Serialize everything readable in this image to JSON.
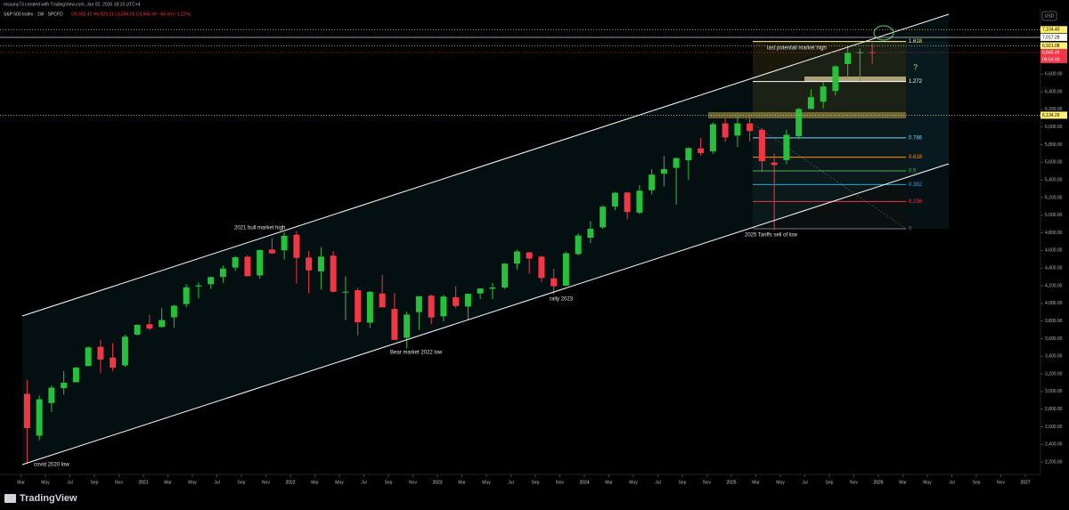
{
  "chart_data": {
    "type": "candlestick",
    "header": "mssany73 created with TradingView.com, Jan 02, 2026 18:15 UTC+4",
    "symbol": "S&P 500 Index · 1W · SPCFD",
    "quote": "O6,902.42 H6,929.21 L6,844.55 C6,845.49 −84.49 (−1.22%)",
    "currency": "USD",
    "brand": "TradingView",
    "up_color": "#26c13b",
    "down_color": "#f23645",
    "x": [
      "2020-03",
      "2020-04",
      "2020-05",
      "2020-06",
      "2020-07",
      "2020-08",
      "2020-09",
      "2020-10",
      "2020-11",
      "2020-12",
      "2021-01",
      "2021-02",
      "2021-03",
      "2021-04",
      "2021-05",
      "2021-06",
      "2021-07",
      "2021-08",
      "2021-09",
      "2021-10",
      "2021-11",
      "2021-12",
      "2022-01",
      "2022-02",
      "2022-03",
      "2022-04",
      "2022-05",
      "2022-06",
      "2022-07",
      "2022-08",
      "2022-09",
      "2022-10",
      "2022-11",
      "2022-12",
      "2023-01",
      "2023-02",
      "2023-03",
      "2023-04",
      "2023-05",
      "2023-06",
      "2023-07",
      "2023-08",
      "2023-09",
      "2023-10",
      "2023-11",
      "2023-12",
      "2024-01",
      "2024-02",
      "2024-03",
      "2024-04",
      "2024-05",
      "2024-06",
      "2024-07",
      "2024-08",
      "2024-09",
      "2024-10",
      "2024-11",
      "2024-12",
      "2025-01",
      "2025-02",
      "2025-03",
      "2025-04",
      "2025-05",
      "2025-06",
      "2025-07",
      "2025-08",
      "2025-09",
      "2025-10",
      "2025-11",
      "2025-12"
    ],
    "ohlc": [
      [
        2974,
        3136,
        2192,
        2585
      ],
      [
        2499,
        2954,
        2447,
        2912
      ],
      [
        2869,
        3068,
        2766,
        3044
      ],
      [
        3038,
        3233,
        2965,
        3100
      ],
      [
        3105,
        3279,
        3115,
        3271
      ],
      [
        3289,
        3514,
        3285,
        3500
      ],
      [
        3507,
        3588,
        3209,
        3363
      ],
      [
        3385,
        3550,
        3233,
        3270
      ],
      [
        3296,
        3646,
        3280,
        3622
      ],
      [
        3645,
        3760,
        3633,
        3756
      ],
      [
        3764,
        3870,
        3695,
        3714
      ],
      [
        3732,
        3950,
        3725,
        3811
      ],
      [
        3842,
        3983,
        3723,
        3973
      ],
      [
        3992,
        4218,
        3955,
        4181
      ],
      [
        4192,
        4238,
        4056,
        4204
      ],
      [
        4217,
        4302,
        4164,
        4298
      ],
      [
        4300,
        4429,
        4233,
        4395
      ],
      [
        4406,
        4537,
        4367,
        4523
      ],
      [
        4529,
        4546,
        4306,
        4308
      ],
      [
        4317,
        4608,
        4279,
        4605
      ],
      [
        4610,
        4744,
        4560,
        4567
      ],
      [
        4602,
        4809,
        4495,
        4766
      ],
      [
        4778,
        4819,
        4223,
        4516
      ],
      [
        4519,
        4595,
        4115,
        4374
      ],
      [
        4363,
        4637,
        4157,
        4530
      ],
      [
        4541,
        4593,
        4124,
        4132
      ],
      [
        4131,
        4307,
        3811,
        4132
      ],
      [
        4150,
        4177,
        3637,
        3785
      ],
      [
        3781,
        4140,
        3721,
        4130
      ],
      [
        4112,
        4325,
        3955,
        3955
      ],
      [
        3937,
        4119,
        3585,
        3586
      ],
      [
        3610,
        3905,
        3492,
        3872
      ],
      [
        3901,
        4080,
        3699,
        4080
      ],
      [
        4087,
        4101,
        3764,
        3840
      ],
      [
        3853,
        4095,
        3795,
        4077
      ],
      [
        4070,
        4195,
        3944,
        3970
      ],
      [
        3964,
        4111,
        3809,
        4109
      ],
      [
        4112,
        4170,
        4049,
        4169
      ],
      [
        4166,
        4231,
        4048,
        4180
      ],
      [
        4181,
        4458,
        4166,
        4450
      ],
      [
        4451,
        4607,
        4385,
        4589
      ],
      [
        4578,
        4584,
        4335,
        4508
      ],
      [
        4530,
        4541,
        4238,
        4288
      ],
      [
        4284,
        4393,
        4103,
        4194
      ],
      [
        4201,
        4587,
        4197,
        4568
      ],
      [
        4559,
        4794,
        4547,
        4770
      ],
      [
        4745,
        4932,
        4683,
        4846
      ],
      [
        4862,
        5111,
        4845,
        5096
      ],
      [
        5098,
        5265,
        5057,
        5254
      ],
      [
        5257,
        5264,
        4953,
        5036
      ],
      [
        5029,
        5342,
        5011,
        5278
      ],
      [
        5283,
        5523,
        5235,
        5460
      ],
      [
        5471,
        5670,
        5327,
        5522
      ],
      [
        5537,
        5652,
        5120,
        5648
      ],
      [
        5623,
        5768,
        5403,
        5762
      ],
      [
        5757,
        5878,
        5675,
        5705
      ],
      [
        5724,
        6053,
        5697,
        6032
      ],
      [
        6041,
        6100,
        5833,
        5882
      ],
      [
        5903,
        6128,
        5773,
        6041
      ],
      [
        6041,
        6147,
        5837,
        5955
      ],
      [
        5968,
        5986,
        5489,
        5612
      ],
      [
        5598,
        5696,
        4835,
        5569
      ],
      [
        5626,
        5969,
        5578,
        5912
      ],
      [
        5897,
        6216,
        5862,
        6205
      ],
      [
        6205,
        6427,
        6202,
        6339
      ],
      [
        6287,
        6508,
        6212,
        6460
      ],
      [
        6409,
        6700,
        6360,
        6688
      ],
      [
        6715,
        6920,
        6550,
        6840
      ],
      [
        6843,
        6890,
        6521,
        6849
      ],
      [
        6850,
        6945,
        6720,
        6845
      ]
    ],
    "ylim": [
      2060,
      7340
    ],
    "yticks": [
      {
        "value": 2200,
        "label": "2,200.00"
      },
      {
        "value": 2400,
        "label": "2,400.00"
      },
      {
        "value": 2600,
        "label": "2,600.00"
      },
      {
        "value": 2800,
        "label": "2,800.00"
      },
      {
        "value": 3000,
        "label": "3,000.00"
      },
      {
        "value": 3200,
        "label": "3,200.00"
      },
      {
        "value": 3400,
        "label": "3,400.00"
      },
      {
        "value": 3600,
        "label": "3,600.00"
      },
      {
        "value": 3800,
        "label": "3,800.00"
      },
      {
        "value": 4000,
        "label": "4,000.00"
      },
      {
        "value": 4200,
        "label": "4,200.00"
      },
      {
        "value": 4400,
        "label": "4,400.00"
      },
      {
        "value": 4600,
        "label": "4,600.00"
      },
      {
        "value": 4800,
        "label": "4,800.00"
      },
      {
        "value": 5000,
        "label": "5,000.00"
      },
      {
        "value": 5200,
        "label": "5,200.00"
      },
      {
        "value": 5400,
        "label": "5,400.00"
      },
      {
        "value": 5600,
        "label": "5,600.00"
      },
      {
        "value": 5800,
        "label": "5,800.00"
      },
      {
        "value": 6000,
        "label": "6,000.00"
      },
      {
        "value": 6200,
        "label": "6,200.00"
      },
      {
        "value": 6400,
        "label": "6,400.00"
      },
      {
        "value": 6600,
        "label": "6,600.00"
      }
    ],
    "xticks": [
      {
        "value": "2020-03",
        "label": "Mar"
      },
      {
        "value": "2020-05",
        "label": "May"
      },
      {
        "value": "2020-07",
        "label": "Jul"
      },
      {
        "value": "2020-09",
        "label": "Sep"
      },
      {
        "value": "2020-11",
        "label": "Nov"
      },
      {
        "value": "2021-01",
        "label": "2021"
      },
      {
        "value": "2021-03",
        "label": "Mar"
      },
      {
        "value": "2021-05",
        "label": "May"
      },
      {
        "value": "2021-07",
        "label": "Jul"
      },
      {
        "value": "2021-09",
        "label": "Sep"
      },
      {
        "value": "2021-11",
        "label": "Nov"
      },
      {
        "value": "2022-01",
        "label": "2022"
      },
      {
        "value": "2022-03",
        "label": "Mar"
      },
      {
        "value": "2022-05",
        "label": "May"
      },
      {
        "value": "2022-07",
        "label": "Jul"
      },
      {
        "value": "2022-09",
        "label": "Sep"
      },
      {
        "value": "2022-11",
        "label": "Nov"
      },
      {
        "value": "2023-01",
        "label": "2023"
      },
      {
        "value": "2023-03",
        "label": "Mar"
      },
      {
        "value": "2023-05",
        "label": "May"
      },
      {
        "value": "2023-07",
        "label": "Jul"
      },
      {
        "value": "2023-09",
        "label": "Sep"
      },
      {
        "value": "2023-11",
        "label": "Nov"
      },
      {
        "value": "2024-01",
        "label": "2024"
      },
      {
        "value": "2024-03",
        "label": "Mar"
      },
      {
        "value": "2024-05",
        "label": "May"
      },
      {
        "value": "2024-07",
        "label": "Jul"
      },
      {
        "value": "2024-09",
        "label": "Sep"
      },
      {
        "value": "2024-11",
        "label": "Nov"
      },
      {
        "value": "2025-01",
        "label": "2025"
      },
      {
        "value": "2025-03",
        "label": "Mar"
      },
      {
        "value": "2025-05",
        "label": "May"
      },
      {
        "value": "2025-07",
        "label": "Jul"
      },
      {
        "value": "2025-09",
        "label": "Sep"
      },
      {
        "value": "2025-11",
        "label": "Nov"
      },
      {
        "value": "2026-01",
        "label": "2026"
      },
      {
        "value": "2026-03",
        "label": "Mar"
      },
      {
        "value": "2026-05",
        "label": "May"
      },
      {
        "value": "2026-07",
        "label": "Jul"
      },
      {
        "value": "2026-09",
        "label": "Sep"
      },
      {
        "value": "2026-11",
        "label": "Nov"
      },
      {
        "value": "2027-01",
        "label": "2027"
      }
    ],
    "fib_levels": [
      0,
      0.236,
      0.382,
      0.5,
      0.618,
      0.786,
      1.272,
      1.618
    ],
    "fib_colors": [
      "#787b86",
      "#f23645",
      "#2aa7e0",
      "#4caf50",
      "#ff9800",
      "#7fd3f5",
      "#ffffff",
      "#fff59d"
    ],
    "price_labels": [
      {
        "value": 7104.4,
        "label": "7,104.40",
        "color": "#fff176",
        "text_color": "#000000"
      },
      {
        "value": 7017.28,
        "label": "7,017.28",
        "color": "#ffffff",
        "text_color": "#000000"
      },
      {
        "value": 6921.08,
        "label": "6,921.08",
        "color": "#fff176",
        "text_color": "#000000"
      },
      {
        "value": 6845.49,
        "label": "6,845.49",
        "color": "#f23645",
        "text_color": "#ffffff"
      },
      {
        "value": 6134.29,
        "label": "6,134.29",
        "color": "#fff176",
        "text_color": "#000000"
      }
    ],
    "countdown": "06:54:40",
    "annotations": [
      "covid 2020 low",
      "2021 bull market high",
      "Bear market 2022 low",
      "rally 2023",
      "2025 Tariffs sell of low",
      "last potentail market high",
      "?"
    ]
  }
}
